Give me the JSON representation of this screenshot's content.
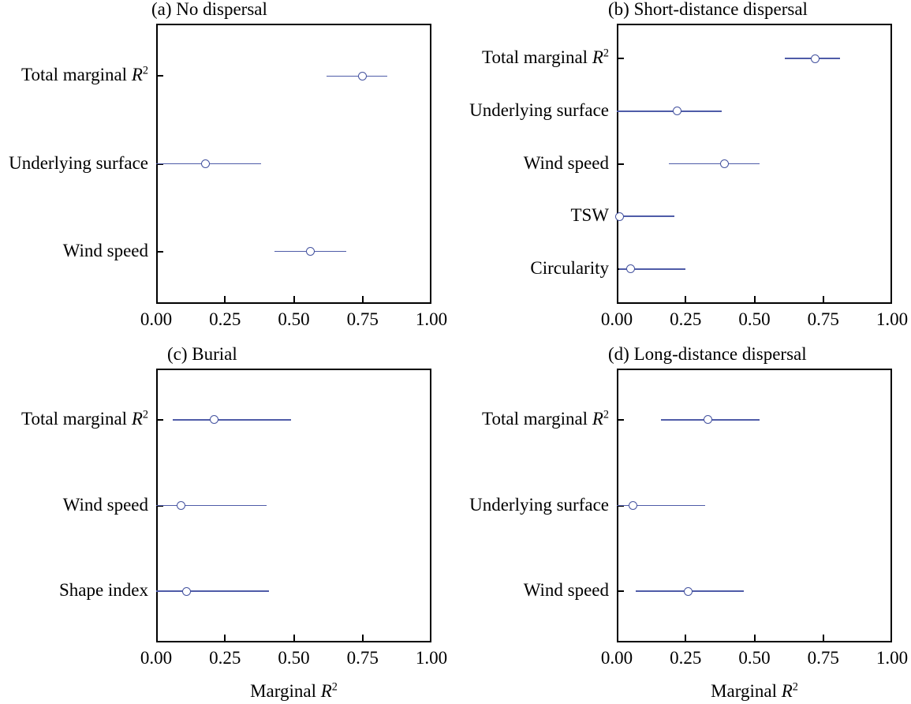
{
  "figure": {
    "background": "#ffffff",
    "text_color": "#000000"
  },
  "style": {
    "series_color": "#4f5ca8",
    "marker_stroke": "#44529f",
    "marker_fill": "#ffffff",
    "axis_color": "#000000"
  },
  "axis": {
    "xlim": [
      0,
      1
    ],
    "tick_values": [
      0,
      0.25,
      0.5,
      0.75,
      1
    ],
    "tick_labels": [
      "0.00",
      "0.25",
      "0.50",
      "0.75",
      "1.00"
    ],
    "xlabel": {
      "main": "Marginal ",
      "sym": "R",
      "sup": "2"
    },
    "grid": false,
    "legend": false
  },
  "chart_data": [
    {
      "type": "scatter",
      "panel": "a",
      "title": "(a) No dispersal",
      "orientation": "horizontal",
      "categories": [
        "Total marginal R²",
        "Underlying surface",
        "Wind speed"
      ],
      "rows": [
        {
          "label": "Total marginal R²",
          "label_main": "Total marginal ",
          "label_sym": "R",
          "label_sup": "2",
          "estimate": 0.75,
          "ci_low": 0.62,
          "ci_high": 0.84,
          "line_weight": 1.5
        },
        {
          "label": "Underlying surface",
          "label_main": "Underlying surface",
          "label_sym": "",
          "label_sup": "",
          "estimate": 0.18,
          "ci_low": 0.0,
          "ci_high": 0.38,
          "line_weight": 1.5
        },
        {
          "label": "Wind speed",
          "label_main": "Wind speed",
          "label_sym": "",
          "label_sup": "",
          "estimate": 0.56,
          "ci_low": 0.43,
          "ci_high": 0.69,
          "line_weight": 1.5
        }
      ]
    },
    {
      "type": "scatter",
      "panel": "b",
      "title": "(b) Short-distance dispersal",
      "orientation": "horizontal",
      "categories": [
        "Total marginal R²",
        "Underlying surface",
        "Wind speed",
        "TSW",
        "Circularity"
      ],
      "rows": [
        {
          "label": "Total marginal R²",
          "label_main": "Total marginal ",
          "label_sym": "R",
          "label_sup": "2",
          "estimate": 0.72,
          "ci_low": 0.61,
          "ci_high": 0.81,
          "line_weight": 1.5
        },
        {
          "label": "Underlying surface",
          "label_main": "Underlying surface",
          "label_sym": "",
          "label_sup": "",
          "estimate": 0.22,
          "ci_low": 0.0,
          "ci_high": 0.38,
          "line_weight": 1.5
        },
        {
          "label": "Wind speed",
          "label_main": "Wind speed",
          "label_sym": "",
          "label_sup": "",
          "estimate": 0.39,
          "ci_low": 0.19,
          "ci_high": 0.52,
          "line_weight": 1.5
        },
        {
          "label": "TSW",
          "label_main": "TSW",
          "label_sym": "",
          "label_sup": "",
          "estimate": 0.01,
          "ci_low": 0.0,
          "ci_high": 0.21,
          "line_weight": 2.0
        },
        {
          "label": "Circularity",
          "label_main": "Circularity",
          "label_sym": "",
          "label_sup": "",
          "estimate": 0.05,
          "ci_low": 0.01,
          "ci_high": 0.25,
          "line_weight": 2.0
        }
      ]
    },
    {
      "type": "scatter",
      "panel": "c",
      "title": "(c) Burial",
      "orientation": "horizontal",
      "categories": [
        "Total marginal R²",
        "Wind speed",
        "Shape index"
      ],
      "rows": [
        {
          "label": "Total marginal R²",
          "label_main": "Total marginal ",
          "label_sym": "R",
          "label_sup": "2",
          "estimate": 0.21,
          "ci_low": 0.06,
          "ci_high": 0.49,
          "line_weight": 2.2
        },
        {
          "label": "Wind speed",
          "label_main": "Wind speed",
          "label_sym": "",
          "label_sup": "",
          "estimate": 0.09,
          "ci_low": 0.0,
          "ci_high": 0.4,
          "line_weight": 1.2
        },
        {
          "label": "Shape index",
          "label_main": "Shape index",
          "label_sym": "",
          "label_sup": "",
          "estimate": 0.11,
          "ci_low": 0.0,
          "ci_high": 0.41,
          "line_weight": 2.2
        }
      ]
    },
    {
      "type": "scatter",
      "panel": "d",
      "title": "(d) Long-distance dispersal",
      "orientation": "horizontal",
      "categories": [
        "Total marginal R²",
        "Underlying surface",
        "Wind speed"
      ],
      "rows": [
        {
          "label": "Total marginal R²",
          "label_main": "Total marginal ",
          "label_sym": "R",
          "label_sup": "2",
          "estimate": 0.33,
          "ci_low": 0.16,
          "ci_high": 0.52,
          "line_weight": 2.2
        },
        {
          "label": "Underlying surface",
          "label_main": "Underlying surface",
          "label_sym": "",
          "label_sup": "",
          "estimate": 0.06,
          "ci_low": 0.0,
          "ci_high": 0.32,
          "line_weight": 1.2
        },
        {
          "label": "Wind speed",
          "label_main": "Wind speed",
          "label_sym": "",
          "label_sup": "",
          "estimate": 0.26,
          "ci_low": 0.07,
          "ci_high": 0.46,
          "line_weight": 2.2
        }
      ]
    }
  ]
}
